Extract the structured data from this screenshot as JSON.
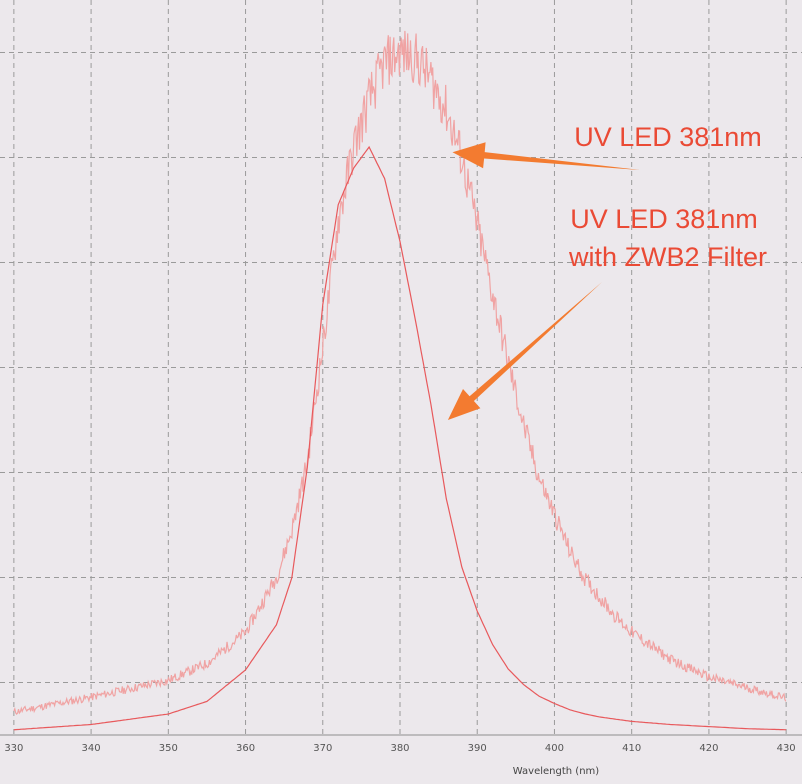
{
  "chart_data": {
    "type": "line",
    "title": "",
    "xlabel": "Wavelength (nm)",
    "ylabel": "",
    "xlim": [
      329.5,
      430.5
    ],
    "ylim": [
      0,
      7
    ],
    "grid": true,
    "x_ticks": [
      "330",
      "340",
      "350",
      "360",
      "370",
      "380",
      "390",
      "400",
      "410",
      "420",
      "430"
    ],
    "series": [
      {
        "x": [
          330,
          340,
          350,
          355,
          360,
          364,
          366,
          368,
          370,
          372,
          374,
          376,
          378,
          380,
          382,
          384,
          386,
          388,
          390,
          392,
          394,
          396,
          398,
          400,
          402,
          404,
          406,
          408,
          410,
          415,
          420,
          425,
          430
        ],
        "values": [
          0.22,
          0.36,
          0.52,
          0.68,
          0.98,
          1.5,
          1.95,
          2.6,
          3.7,
          4.9,
          5.6,
          6.05,
          6.4,
          6.5,
          6.45,
          6.25,
          5.95,
          5.5,
          4.85,
          4.2,
          3.55,
          2.95,
          2.45,
          2.1,
          1.75,
          1.48,
          1.3,
          1.12,
          0.98,
          0.72,
          0.55,
          0.45,
          0.35
        ],
        "noisy": true
      },
      {
        "x": [
          330,
          340,
          350,
          355,
          360,
          364,
          366,
          368,
          370,
          372,
          374,
          376,
          378,
          380,
          382,
          384,
          386,
          388,
          390,
          392,
          394,
          396,
          398,
          400,
          402,
          404,
          406,
          408,
          410,
          415,
          420,
          425,
          430
        ],
        "values": [
          0.05,
          0.1,
          0.2,
          0.32,
          0.62,
          1.05,
          1.5,
          2.55,
          4.1,
          5.05,
          5.4,
          5.6,
          5.3,
          4.7,
          3.95,
          3.15,
          2.25,
          1.6,
          1.18,
          0.86,
          0.63,
          0.48,
          0.37,
          0.3,
          0.24,
          0.2,
          0.17,
          0.15,
          0.13,
          0.1,
          0.08,
          0.06,
          0.05
        ],
        "noisy": false
      }
    ],
    "annotations": [
      {
        "line1": "UV LED 381nm",
        "line2": "",
        "target_x": 386.8,
        "target_y": 5.55
      },
      {
        "line1": "UV LED 381nm",
        "line2": "with ZWB2 Filter",
        "target_x": 386.2,
        "target_y": 3.0
      }
    ]
  },
  "colors": {
    "background": "#ece8ec",
    "grid": "#9a9a9a",
    "series_unfiltered": "#f0a3a3",
    "series_filtered": "#e8595c",
    "annotation_text": "#ea4a35",
    "arrow": "#f37b30"
  }
}
